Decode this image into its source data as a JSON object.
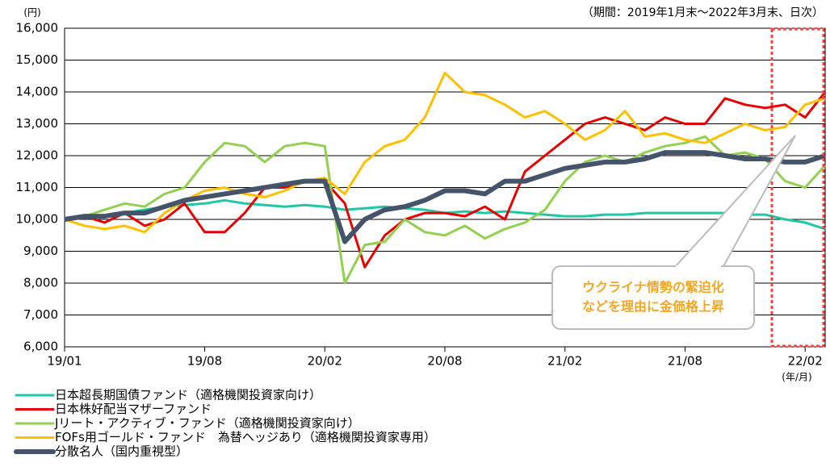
{
  "chart_data": {
    "type": "line",
    "y_label": "(円)",
    "subtitle": "（期間：2019年1月末～2022年3月末、日次）",
    "x_unit": "(年/月)",
    "annotation": [
      "ウクライナ情勢の緊迫化",
      "などを理由に金価格上昇"
    ],
    "categories": [
      "19/01",
      null,
      null,
      null,
      null,
      null,
      null,
      "19/08",
      null,
      null,
      null,
      null,
      null,
      "20/02",
      null,
      null,
      null,
      null,
      null,
      "20/08",
      null,
      null,
      null,
      null,
      null,
      "21/02",
      null,
      null,
      null,
      null,
      null,
      "21/08",
      null,
      null,
      null,
      null,
      null,
      "22/02",
      null
    ],
    "ylim": [
      6000,
      16000
    ],
    "yticks": [
      {
        "value": 6000,
        "label": "6,000"
      },
      {
        "value": 7000,
        "label": "7,000"
      },
      {
        "value": 8000,
        "label": "8,000"
      },
      {
        "value": 9000,
        "label": "9,000"
      },
      {
        "value": 10000,
        "label": "10,000"
      },
      {
        "value": 11000,
        "label": "11,000"
      },
      {
        "value": 12000,
        "label": "12,000"
      },
      {
        "value": 13000,
        "label": "13,000"
      },
      {
        "value": 14000,
        "label": "14,000"
      },
      {
        "value": 15000,
        "label": "15,000"
      },
      {
        "value": 16000,
        "label": "16,000"
      }
    ],
    "grid": true,
    "series": [
      {
        "name": "日本超長期国債ファンド（適格機関投資家向け）",
        "color": "#1ec8a5",
        "width": 3,
        "values": [
          10000,
          10050,
          10100,
          10200,
          10300,
          10400,
          10450,
          10500,
          10600,
          10500,
          10450,
          10400,
          10450,
          10400,
          10300,
          10350,
          10400,
          10350,
          10300,
          10200,
          10250,
          10200,
          10250,
          10200,
          10150,
          10100,
          10100,
          10150,
          10150,
          10200,
          10200,
          10200,
          10200,
          10200,
          10150,
          10150,
          10000,
          9900,
          9700
        ]
      },
      {
        "name": "日本株好配当マザーファンド",
        "color": "#e60000",
        "width": 3,
        "values": [
          10000,
          10100,
          9900,
          10200,
          9800,
          10000,
          10500,
          9600,
          9600,
          10200,
          11000,
          11000,
          11200,
          11200,
          10500,
          8500,
          9500,
          10000,
          10200,
          10200,
          10100,
          10400,
          10000,
          11500,
          12000,
          12500,
          13000,
          13200,
          13000,
          12800,
          13200,
          13000,
          13000,
          13800,
          13600,
          13500,
          13600,
          13200,
          14000
        ]
      },
      {
        "name": "Jリート・アクティブ・ファンド（適格機関投資家向け）",
        "color": "#92d050",
        "width": 3,
        "values": [
          10000,
          10100,
          10300,
          10500,
          10400,
          10800,
          11000,
          11800,
          12400,
          12300,
          11800,
          12300,
          12400,
          12300,
          8000,
          9200,
          9300,
          10000,
          9600,
          9500,
          9800,
          9400,
          9700,
          9900,
          10300,
          11200,
          11800,
          12000,
          11800,
          12100,
          12300,
          12400,
          12600,
          12000,
          12100,
          11900,
          11200,
          11000,
          11700
        ]
      },
      {
        "name": "FOFs用ゴールド・ファンド　為替ヘッジあり（適格機関投資家専用）",
        "color": "#ffc000",
        "width": 3,
        "values": [
          10000,
          9800,
          9700,
          9800,
          9600,
          10200,
          10600,
          10900,
          11000,
          10800,
          10700,
          10900,
          11200,
          11300,
          10800,
          11800,
          12300,
          12500,
          13200,
          14600,
          14000,
          13900,
          13600,
          13200,
          13400,
          13000,
          12500,
          12800,
          13400,
          12600,
          12700,
          12500,
          12400,
          12700,
          13000,
          12800,
          12900,
          13600,
          13800
        ]
      },
      {
        "name": "分散名人（国内重視型）",
        "color": "#44546a",
        "width": 6,
        "values": [
          10000,
          10100,
          10100,
          10200,
          10200,
          10400,
          10600,
          10700,
          10800,
          10900,
          11000,
          11100,
          11200,
          11200,
          9300,
          10000,
          10300,
          10400,
          10600,
          10900,
          10900,
          10800,
          11200,
          11200,
          11400,
          11600,
          11700,
          11800,
          11800,
          11900,
          12100,
          12100,
          12100,
          12000,
          11900,
          11900,
          11800,
          11800,
          12000
        ]
      }
    ]
  }
}
